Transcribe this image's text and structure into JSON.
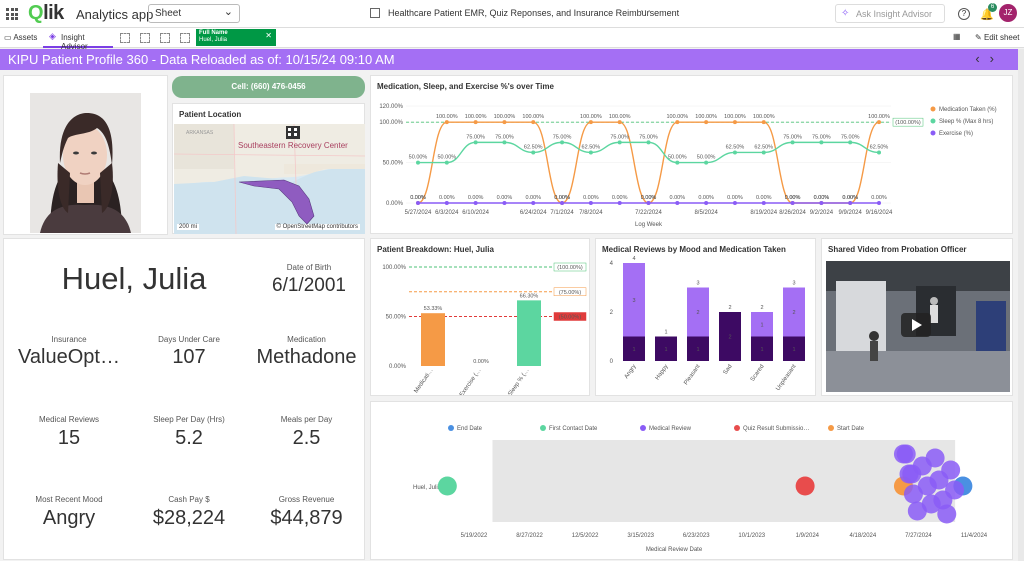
{
  "topbar": {
    "logo": "Qlik",
    "app_name": "Analytics app",
    "sheet_select": "Sheet",
    "doc_title": "Healthcare Patient EMR, Quiz Reponses, and Insurance Reimbursement",
    "more": "···",
    "insight_placeholder": "Ask Insight Advisor",
    "notif_count": "6",
    "avatar": "JZ"
  },
  "toolbar2": {
    "assets": "Assets",
    "insight_advisor": "Insight Advisor",
    "filter_field": "Full Name",
    "filter_value": "Huel, Julia",
    "edit_sheet": "Edit sheet"
  },
  "banner": {
    "title": "KIPU Patient Profile 360 - Data Reloaded as of: 10/15/24 09:10 AM"
  },
  "contact": {
    "call": "Cell: (660) 476-0456"
  },
  "location": {
    "title": "Patient Location",
    "facility": "Southeastern Recovery Center",
    "state_label": "ARKANSAS",
    "scale": "200 mi",
    "attribution": "© OpenStreetMap contributors"
  },
  "profile": {
    "name": "Huel, Julia",
    "dob_label": "Date of Birth",
    "dob": "6/1/2001",
    "insurance_label": "Insurance",
    "insurance": "ValueOpt…",
    "days_label": "Days Under Care",
    "days": "107",
    "medication_label": "Medication",
    "medication": "Methadone",
    "reviews_label": "Medical Reviews",
    "reviews": "15",
    "sleep_label": "Sleep Per Day (Hrs)",
    "sleep": "5.2",
    "meals_label": "Meals per Day",
    "meals": "2.5",
    "mood_label": "Most Recent Mood",
    "mood": "Angry",
    "cash_label": "Cash Pay $",
    "cash": "$28,224",
    "gross_label": "Gross Revenue",
    "gross": "$44,879"
  },
  "video": {
    "title": "Shared Video from Probation Officer"
  },
  "chart_data": [
    {
      "type": "line",
      "title": "Medication, Sleep, and Exercise %'s over Time",
      "xlabel": "Log Week",
      "x": [
        "5/27/2024",
        "6/3/2024",
        "6/10/2024",
        "6/17/2024",
        "6/24/2024",
        "7/1/2024",
        "7/8/2024",
        "7/15/2024",
        "7/22/2024",
        "7/29/2024",
        "8/5/2024",
        "8/12/2024",
        "8/19/2024",
        "8/26/2024",
        "9/2/2024",
        "9/9/2024",
        "9/16/2024"
      ],
      "x_ticks": [
        "5/27/2024",
        "6/3/2024",
        "6/10/2024",
        "6/24/2024",
        "7/1/2024",
        "7/8/2024",
        "7/22/2024",
        "8/5/2024",
        "8/19/2024",
        "8/26/2024",
        "9/2/2024",
        "9/9/2024",
        "9/16/2024"
      ],
      "ylim": [
        0,
        120
      ],
      "y_ticks": [
        "120.00%",
        "100.00%",
        "50.00%",
        "0.00%"
      ],
      "reference_line": {
        "label": "(100.00%)",
        "value": 100,
        "color": "#4ec277"
      },
      "series": [
        {
          "name": "Medication Taken (%)",
          "color": "#f59a46",
          "values": [
            0,
            100,
            100,
            100,
            100,
            0,
            100,
            100,
            0,
            100,
            100,
            100,
            100,
            0,
            0,
            0,
            100
          ]
        },
        {
          "name": "Sleep % (Max 8 hrs)",
          "color": "#5cd6a0",
          "values": [
            50,
            50,
            75,
            75,
            62.5,
            75,
            62.5,
            75,
            75,
            50,
            50,
            62.5,
            62.5,
            75,
            75,
            75,
            62.5
          ]
        },
        {
          "name": "Exercise (%)",
          "color": "#8a5cf6",
          "values": [
            0,
            0,
            0,
            0,
            0,
            0,
            0,
            0,
            0,
            0,
            0,
            0,
            0,
            0,
            0,
            0,
            0
          ]
        }
      ],
      "legend": "right"
    },
    {
      "type": "bar",
      "title": "Patient Breakdown: Huel, Julia",
      "categories": [
        "Medicati…",
        "Exercise (…",
        "Sleep % (…"
      ],
      "values": [
        53.33,
        0,
        66.3
      ],
      "value_labels": [
        "53.33%",
        "0.00%",
        "66.30%"
      ],
      "colors": [
        "#f59a46",
        "#f59a46",
        "#5cd6a0"
      ],
      "ylim": [
        0,
        100
      ],
      "y_ticks": [
        "100.00%",
        "50.00%",
        "0.00%"
      ],
      "reference_lines": [
        {
          "label": "(100.00%)",
          "value": 100,
          "color": "#4ec277"
        },
        {
          "label": "(75.00%)",
          "value": 75,
          "color": "#f59a46"
        },
        {
          "label": "(50.00%)",
          "value": 50,
          "color": "#e03b3b"
        }
      ]
    },
    {
      "type": "bar",
      "title": "Medical Reviews by Mood and Medication Taken",
      "categories": [
        "Angry",
        "Happy",
        "Pleasant",
        "Sad",
        "Scared",
        "Unpleasant"
      ],
      "series": [
        {
          "name": "",
          "color": "#3d0a63",
          "values": [
            1,
            1,
            1,
            2,
            1,
            1
          ]
        },
        {
          "name": "",
          "color": "#a46ff4",
          "values": [
            3,
            0,
            2,
            0,
            1,
            2
          ]
        }
      ],
      "totals": [
        4,
        1,
        3,
        2,
        2,
        3
      ],
      "ylim": [
        0,
        4
      ],
      "y_ticks": [
        "4",
        "2",
        "0"
      ]
    },
    {
      "type": "scatter",
      "xlabel": "Medical Review Date",
      "ylabel": "Huel, Julia",
      "x_ticks": [
        "5/19/2022",
        "8/27/2022",
        "12/5/2022",
        "3/15/2023",
        "6/23/2023",
        "10/1/2023",
        "1/9/2024",
        "4/18/2024",
        "7/27/2024",
        "11/4/2024"
      ],
      "legend": [
        {
          "name": "End Date",
          "color": "#4a90e2"
        },
        {
          "name": "First Contact Date",
          "color": "#5cd6a0"
        },
        {
          "name": "Medical Review",
          "color": "#8a5cf6"
        },
        {
          "name": "Quiz Result Submissio…",
          "color": "#e84c4c"
        },
        {
          "name": "Start Date",
          "color": "#f59a46"
        }
      ],
      "points": [
        {
          "series": "First Contact Date",
          "x": "4/1/2022"
        },
        {
          "series": "Quiz Result Submissio…",
          "x": "1/5/2024"
        },
        {
          "series": "Start Date",
          "x": "6/30/2024"
        },
        {
          "series": "End Date",
          "x": "10/15/2024"
        },
        {
          "series": "Medical Review",
          "x": "6/30/2024"
        },
        {
          "series": "Medical Review",
          "x": "7/10/2024"
        },
        {
          "series": "Medical Review",
          "x": "7/18/2024"
        },
        {
          "series": "Medical Review",
          "x": "7/25/2024"
        },
        {
          "series": "Medical Review",
          "x": "8/3/2024"
        },
        {
          "series": "Medical Review",
          "x": "8/12/2024"
        },
        {
          "series": "Medical Review",
          "x": "8/19/2024"
        },
        {
          "series": "Medical Review",
          "x": "8/26/2024"
        },
        {
          "series": "Medical Review",
          "x": "9/2/2024"
        },
        {
          "series": "Medical Review",
          "x": "9/9/2024"
        },
        {
          "series": "Medical Review",
          "x": "9/16/2024"
        },
        {
          "series": "Medical Review",
          "x": "9/23/2024"
        },
        {
          "series": "Medical Review",
          "x": "9/30/2024"
        },
        {
          "series": "Medical Review",
          "x": "7/5/2024"
        },
        {
          "series": "Medical Review",
          "x": "7/15/2024"
        }
      ]
    }
  ]
}
